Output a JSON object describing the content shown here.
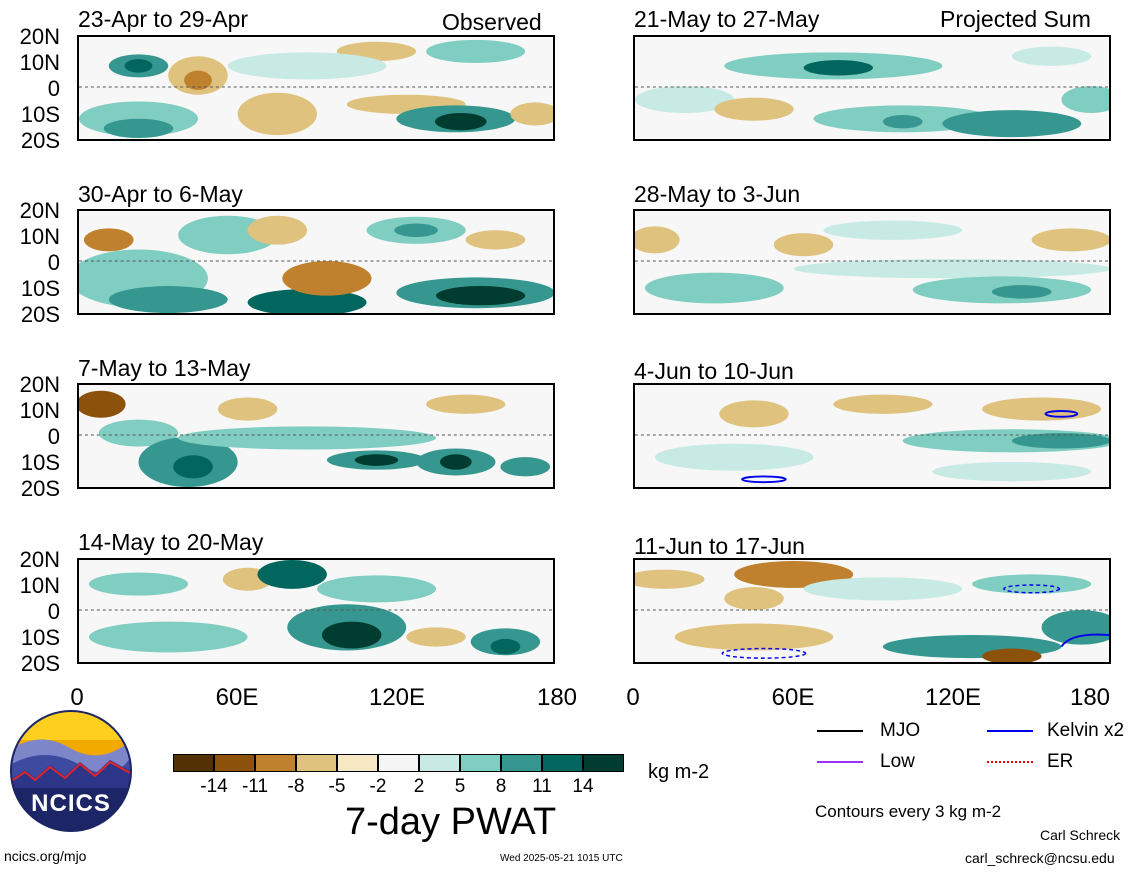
{
  "panels": {
    "observed": [
      {
        "title": "23-Apr to 29-Apr"
      },
      {
        "title": "30-Apr to 6-May"
      },
      {
        "title": "7-May to 13-May"
      },
      {
        "title": "14-May to 20-May"
      }
    ],
    "projected": [
      {
        "title": "21-May to 27-May"
      },
      {
        "title": "28-May to 3-Jun"
      },
      {
        "title": "4-Jun to 10-Jun"
      },
      {
        "title": "11-Jun to 17-Jun"
      }
    ],
    "observed_label": "Observed",
    "projected_label": "Projected Sum"
  },
  "axes": {
    "lat_labels": [
      "20N",
      "10N",
      "0",
      "10S",
      "20S"
    ],
    "lon_labels": [
      "0",
      "60E",
      "120E",
      "180"
    ]
  },
  "colorbar": {
    "ticks": [
      "-14",
      "-11",
      "-8",
      "-5",
      "-2",
      "2",
      "5",
      "8",
      "11",
      "14"
    ],
    "colors": [
      "#543005",
      "#8c510a",
      "#bf812d",
      "#dfc27d",
      "#f6e8c3",
      "#f5f5f5",
      "#c7eae5",
      "#80cdc1",
      "#35978f",
      "#01665e",
      "#003c30"
    ],
    "units": "kg m-2",
    "title": "7-day PWAT"
  },
  "legend": {
    "items": [
      {
        "label": "MJO",
        "color": "#000000"
      },
      {
        "label": "Kelvin x2",
        "color": "#0000ee"
      },
      {
        "label": "Low",
        "color": "#9b30ff"
      },
      {
        "label": "ER",
        "color": "#ee0000"
      }
    ],
    "contour_note": "Contours every 3 kg m-2"
  },
  "footer": {
    "logo_text": "NCICS",
    "url": "ncics.org/mjo",
    "timestamp": "Wed 2025-05-21 1015 UTC",
    "author": "Carl Schreck",
    "email": "carl_schreck@ncsu.edu"
  }
}
